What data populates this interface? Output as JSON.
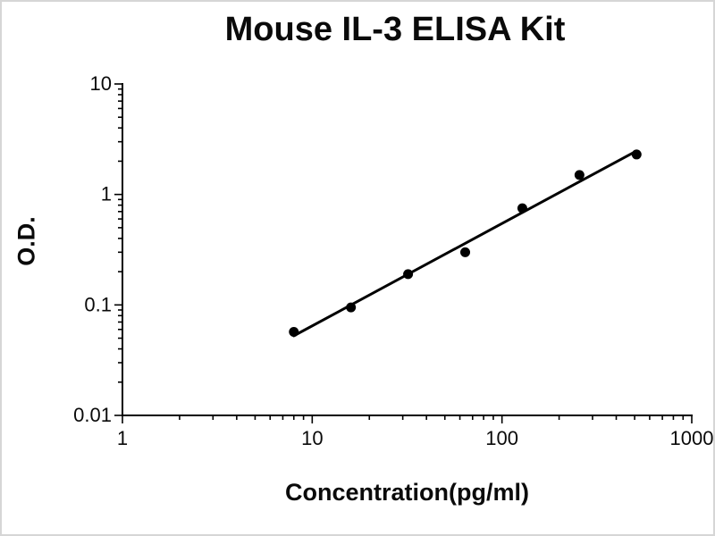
{
  "chart_data": {
    "type": "scatter",
    "title": "Mouse IL-3 ELISA Kit",
    "xlabel": "Concentration(pg/ml)",
    "ylabel": "O.D.",
    "x_scale": "log",
    "y_scale": "log",
    "xlim": [
      1,
      1000
    ],
    "ylim": [
      0.01,
      10
    ],
    "x_ticks": [
      1,
      10,
      100,
      1000
    ],
    "y_ticks": [
      0.01,
      0.1,
      1,
      10
    ],
    "grid": false,
    "legend": false,
    "trendline": true,
    "point_color": "#000000",
    "line_color": "#000000",
    "axis_color": "#000000",
    "points": [
      {
        "x": 8,
        "y": 0.057
      },
      {
        "x": 16,
        "y": 0.095
      },
      {
        "x": 32,
        "y": 0.19
      },
      {
        "x": 64,
        "y": 0.3
      },
      {
        "x": 128,
        "y": 0.75
      },
      {
        "x": 256,
        "y": 1.5
      },
      {
        "x": 512,
        "y": 2.3
      }
    ]
  }
}
